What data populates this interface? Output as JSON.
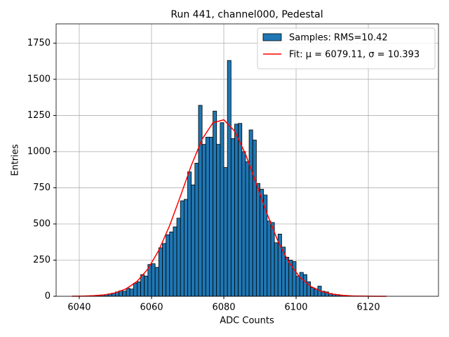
{
  "chart_data": {
    "type": "histogram",
    "title": "Run 441, channel000, Pedestal",
    "x_label": "ADC Counts",
    "y_label": "Entries",
    "name": "Samples: RMS=10.42",
    "color": "#1f77b4",
    "edgecolor": "#000000",
    "bins": [
      6040,
      6041,
      6042,
      6043,
      6044,
      6045,
      6046,
      6047,
      6048,
      6049,
      6050,
      6051,
      6052,
      6053,
      6054,
      6055,
      6056,
      6057,
      6058,
      6059,
      6060,
      6061,
      6062,
      6063,
      6064,
      6065,
      6066,
      6067,
      6068,
      6069,
      6070,
      6071,
      6072,
      6073,
      6074,
      6075,
      6076,
      6077,
      6078,
      6079,
      6080,
      6081,
      6082,
      6083,
      6084,
      6085,
      6086,
      6087,
      6088,
      6089,
      6090,
      6091,
      6092,
      6093,
      6094,
      6095,
      6096,
      6097,
      6098,
      6099,
      6100,
      6101,
      6102,
      6103,
      6104,
      6105,
      6106,
      6107,
      6108,
      6109,
      6110,
      6111,
      6112,
      6113,
      6114,
      6115,
      6116,
      6117,
      6118,
      6119,
      6120
    ],
    "values": [
      1,
      1,
      2,
      3,
      4,
      6,
      9,
      12,
      16,
      22,
      30,
      38,
      35,
      55,
      50,
      90,
      100,
      150,
      140,
      220,
      225,
      200,
      335,
      365,
      425,
      445,
      480,
      540,
      660,
      670,
      860,
      770,
      920,
      1320,
      1050,
      1100,
      1100,
      1280,
      1050,
      1200,
      890,
      1630,
      1090,
      1190,
      1195,
      1000,
      930,
      1150,
      1080,
      780,
      740,
      700,
      520,
      510,
      370,
      430,
      340,
      270,
      250,
      240,
      140,
      165,
      150,
      100,
      60,
      50,
      70,
      35,
      30,
      20,
      15,
      12,
      8,
      6,
      4,
      3,
      2,
      2,
      1,
      1
    ],
    "fit": {
      "name": "Fit: μ = 6079.11, σ = 10.393",
      "color": "#ff0000",
      "x": [
        6038,
        6041,
        6044,
        6047,
        6050,
        6053,
        6056,
        6059,
        6062,
        6065,
        6068,
        6071,
        6074,
        6077,
        6080,
        6083,
        6086,
        6089,
        6092,
        6095,
        6098,
        6101,
        6104,
        6107,
        6110,
        6113,
        6116,
        6119,
        6122,
        6125
      ],
      "values": [
        0.5,
        1.5,
        4,
        10,
        24,
        52,
        103,
        189,
        317,
        488,
        692,
        904,
        1086,
        1200,
        1220,
        1142,
        983,
        779,
        568,
        380,
        235,
        133,
        69,
        33,
        15,
        6,
        2,
        1,
        0,
        0
      ]
    },
    "xlim": [
      6033.6,
      6139.4
    ],
    "xticks": [
      6040,
      6060,
      6080,
      6100,
      6120
    ],
    "ylim": [
      0,
      1883
    ],
    "yticks": [
      0,
      250,
      500,
      750,
      1000,
      1250,
      1500,
      1750
    ],
    "grid": true,
    "legend": "upper right"
  }
}
